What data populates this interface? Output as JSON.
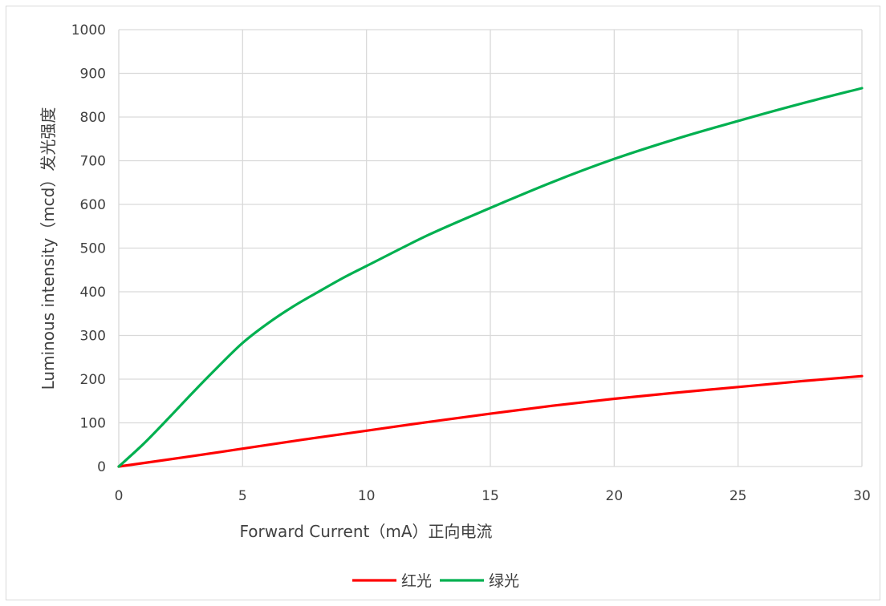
{
  "chart_data": {
    "type": "line",
    "xlabel": "Forward Current（mA）正向电流",
    "ylabel": "Luminous intensity（mcd）发光强度",
    "xlim": [
      0,
      30
    ],
    "ylim": [
      0,
      1000
    ],
    "x_ticks": [
      0,
      5,
      10,
      15,
      20,
      25,
      30
    ],
    "y_ticks": [
      0,
      100,
      200,
      300,
      400,
      500,
      600,
      700,
      800,
      900,
      1000
    ],
    "grid": true,
    "legend_position": "bottom",
    "series": [
      {
        "name": "红光",
        "color": "#ff0000",
        "x": [
          0,
          2.5,
          5,
          7.5,
          10,
          12.5,
          15,
          17.5,
          20,
          22.5,
          25,
          27.5,
          30
        ],
        "y": [
          0,
          20,
          41,
          62,
          82,
          102,
          121,
          139,
          155,
          169,
          182,
          195,
          207
        ]
      },
      {
        "name": "绿光",
        "color": "#00b050",
        "x": [
          0,
          1,
          2,
          3,
          4,
          5,
          6,
          7,
          8,
          9,
          10,
          12.5,
          15,
          17.5,
          20,
          22.5,
          25,
          27.5,
          30
        ],
        "y": [
          0,
          52,
          110,
          170,
          228,
          283,
          327,
          365,
          398,
          430,
          459,
          530,
          592,
          651,
          704,
          750,
          791,
          830,
          866
        ]
      }
    ]
  }
}
